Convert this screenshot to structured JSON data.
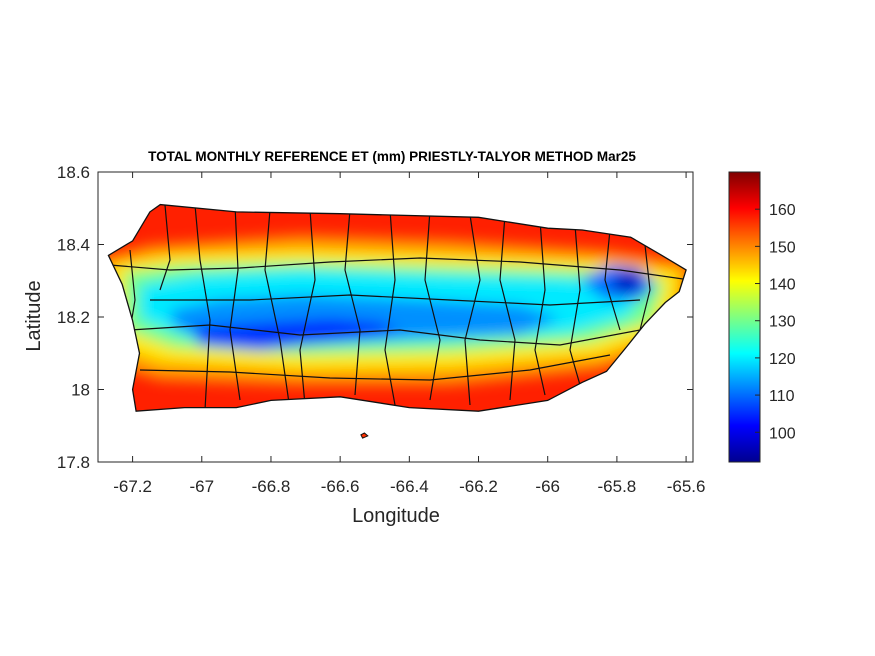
{
  "title": "TOTAL MONTHLY REFERENCE ET (mm) PRIESTLY-TALYOR METHOD Mar25",
  "x_axis": {
    "label": "Longitude",
    "range": [
      -67.3,
      -65.58
    ],
    "ticks": [
      -67.2,
      -67,
      -66.8,
      -66.6,
      -66.4,
      -66.2,
      -66,
      -65.8,
      -65.6
    ],
    "tick_labels": [
      "-67.2",
      "-67",
      "-66.8",
      "-66.6",
      "-66.4",
      "-66.2",
      "-66",
      "-65.8",
      "-65.6"
    ]
  },
  "y_axis": {
    "label": "Latitude",
    "range": [
      17.8,
      18.6
    ],
    "ticks": [
      17.8,
      18,
      18.2,
      18.4,
      18.6
    ],
    "tick_labels": [
      "17.8",
      "18",
      "18.2",
      "18.4",
      "18.6"
    ]
  },
  "colorbar": {
    "colormap": "jet",
    "range": [
      92,
      170
    ],
    "ticks": [
      100,
      110,
      120,
      130,
      140,
      150,
      160
    ],
    "tick_labels": [
      "100",
      "110",
      "120",
      "130",
      "140",
      "150",
      "160"
    ]
  },
  "colors": {
    "jet": [
      "#00008f",
      "#0000ff",
      "#0080ff",
      "#00ffff",
      "#80ff80",
      "#ffff00",
      "#ff8000",
      "#ff0000",
      "#800000"
    ],
    "boundary": "#111111"
  },
  "outline": [
    [
      -67.27,
      18.37
    ],
    [
      -67.2,
      18.41
    ],
    [
      -67.15,
      18.49
    ],
    [
      -67.12,
      18.51
    ],
    [
      -66.9,
      18.49
    ],
    [
      -66.6,
      18.485
    ],
    [
      -66.2,
      18.475
    ],
    [
      -66.0,
      18.445
    ],
    [
      -65.9,
      18.44
    ],
    [
      -65.76,
      18.42
    ],
    [
      -65.67,
      18.37
    ],
    [
      -65.6,
      18.33
    ],
    [
      -65.62,
      18.27
    ],
    [
      -65.66,
      18.24
    ],
    [
      -65.72,
      18.18
    ],
    [
      -65.77,
      18.12
    ],
    [
      -65.83,
      18.05
    ],
    [
      -65.9,
      18.02
    ],
    [
      -66.0,
      17.97
    ],
    [
      -66.2,
      17.94
    ],
    [
      -66.4,
      17.95
    ],
    [
      -66.6,
      17.98
    ],
    [
      -66.8,
      17.97
    ],
    [
      -66.9,
      17.95
    ],
    [
      -67.05,
      17.95
    ],
    [
      -67.19,
      17.94
    ],
    [
      -67.2,
      18.0
    ],
    [
      -67.18,
      18.1
    ],
    [
      -67.2,
      18.19
    ],
    [
      -67.23,
      18.29
    ]
  ],
  "islet_outline": [
    [
      -66.54,
      17.875
    ],
    [
      -66.53,
      17.88
    ],
    [
      -66.52,
      17.872
    ],
    [
      -66.535,
      17.866
    ]
  ],
  "pixel_notes": "ET values peak ~165 mm along north and south coasts, minimum ~95 mm in central cordillera and NE (El Yunque)"
}
